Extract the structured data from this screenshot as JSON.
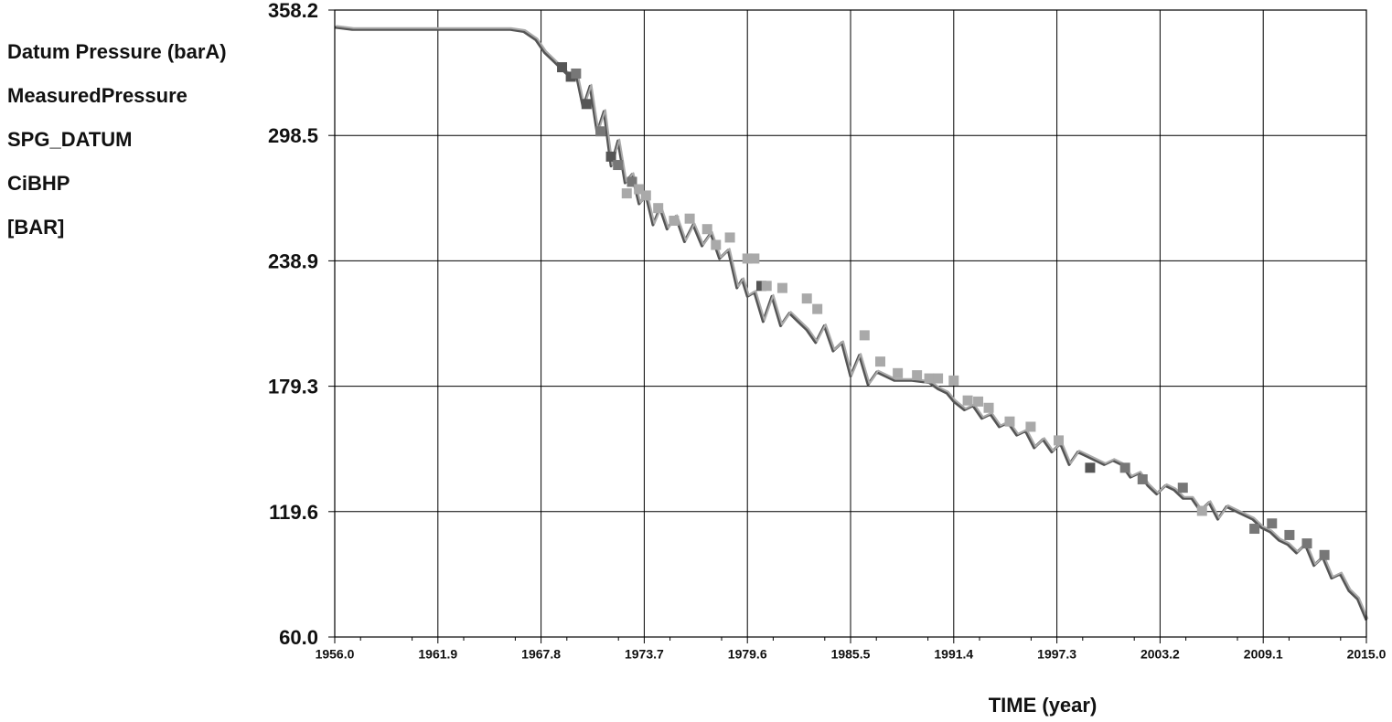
{
  "legend": {
    "lines": [
      "Datum Pressure (barA)",
      "MeasuredPressure",
      "SPG_DATUM",
      "CiBHP",
      "[BAR]"
    ]
  },
  "chart_data": {
    "type": "line",
    "xlabel": "TIME (year)",
    "ylabel": "",
    "xlim": [
      1956.0,
      2015.0
    ],
    "ylim": [
      60.0,
      358.2
    ],
    "x_ticks": [
      "1956.0",
      "1961.9",
      "1967.8",
      "1973.7",
      "1979.6",
      "1985.5",
      "1991.4",
      "1997.3",
      "2003.2",
      "2009.1",
      "2015.0"
    ],
    "y_ticks": [
      "358.2",
      "298.5",
      "238.9",
      "179.3",
      "119.6",
      "60.0"
    ],
    "grid": true,
    "colors": {
      "series_line_dark": "#555555",
      "series_line_light": "#aaaaaa",
      "measured_dark": "#555555",
      "measured_mid": "#777777",
      "measured_light": "#a9a9a9",
      "grid": "#000000"
    },
    "series": [
      {
        "x": [
          1956.0,
          1957.0,
          1960.0,
          1964.0,
          1966.0,
          1966.8,
          1967.5,
          1968.0,
          1968.5,
          1969.0,
          1969.5,
          1969.8,
          1970.2,
          1970.6,
          1971.0,
          1971.4,
          1971.8,
          1972.2,
          1972.6,
          1973.0,
          1973.4,
          1973.8,
          1974.2,
          1974.6,
          1975.0,
          1975.5,
          1976.0,
          1976.5,
          1977.0,
          1977.5,
          1978.0,
          1978.5,
          1979.0,
          1979.3,
          1979.6,
          1980.0,
          1980.5,
          1981.0,
          1981.5,
          1982.0,
          1982.5,
          1983.0,
          1983.5,
          1984.0,
          1984.5,
          1985.0,
          1985.5,
          1986.0,
          1986.5,
          1987.0,
          1987.5,
          1988.0,
          1989.0,
          1990.0,
          1990.5,
          1991.0,
          1991.4,
          1992.0,
          1992.5,
          1993.0,
          1993.5,
          1994.0,
          1994.5,
          1995.0,
          1995.5,
          1996.0,
          1996.5,
          1997.0,
          1997.5,
          1998.0,
          1998.5,
          1999.0,
          1999.5,
          2000.0,
          2000.5,
          2001.0,
          2001.5,
          2002.0,
          2002.5,
          2003.0,
          2003.5,
          2004.0,
          2004.5,
          2005.0,
          2005.5,
          2006.0,
          2006.5,
          2007.0,
          2007.5,
          2008.0,
          2008.5,
          2009.0,
          2009.5,
          2010.0,
          2010.5,
          2011.0,
          2011.5,
          2012.0,
          2012.5,
          2013.0,
          2013.5,
          2014.0,
          2014.5,
          2015.0
        ],
        "y": [
          350.0,
          349.0,
          349.0,
          349.0,
          349.0,
          348.0,
          344.0,
          338.0,
          334.0,
          330.0,
          326.0,
          328.0,
          312.0,
          322.0,
          300.0,
          310.0,
          284.0,
          296.0,
          276.0,
          280.0,
          266.0,
          270.0,
          256.0,
          264.0,
          254.0,
          260.0,
          248.0,
          256.0,
          246.0,
          252.0,
          240.0,
          244.0,
          226.0,
          230.0,
          222.0,
          224.0,
          210.0,
          222.0,
          208.0,
          214.0,
          210.0,
          206.0,
          200.0,
          208.0,
          196.0,
          200.0,
          184.0,
          194.0,
          180.0,
          186.0,
          184.0,
          182.0,
          182.0,
          181.0,
          178.0,
          176.0,
          172.0,
          168.0,
          170.0,
          164.0,
          166.0,
          160.0,
          162.0,
          156.0,
          158.0,
          150.0,
          154.0,
          148.0,
          152.0,
          142.0,
          148.0,
          146.0,
          144.0,
          142.0,
          144.0,
          142.0,
          136.0,
          138.0,
          132.0,
          128.0,
          132.0,
          130.0,
          126.0,
          126.0,
          120.0,
          124.0,
          116.0,
          122.0,
          120.0,
          118.0,
          116.0,
          112.0,
          110.0,
          106.0,
          104.0,
          100.0,
          104.0,
          94.0,
          98.0,
          88.0,
          90.0,
          82.0,
          78.0,
          68.0
        ]
      }
    ],
    "measured_points": [
      {
        "x": 1969.0,
        "y": 331.0,
        "tone": "dark"
      },
      {
        "x": 1969.5,
        "y": 326.5,
        "tone": "dark"
      },
      {
        "x": 1969.8,
        "y": 328.0,
        "tone": "mid"
      },
      {
        "x": 1970.4,
        "y": 313.5,
        "tone": "dark"
      },
      {
        "x": 1971.2,
        "y": 300.5,
        "tone": "mid"
      },
      {
        "x": 1971.8,
        "y": 288.5,
        "tone": "dark"
      },
      {
        "x": 1972.2,
        "y": 284.5,
        "tone": "mid"
      },
      {
        "x": 1972.7,
        "y": 271.0,
        "tone": "light"
      },
      {
        "x": 1973.0,
        "y": 276.5,
        "tone": "mid"
      },
      {
        "x": 1973.4,
        "y": 273.0,
        "tone": "light"
      },
      {
        "x": 1973.8,
        "y": 270.0,
        "tone": "light"
      },
      {
        "x": 1974.5,
        "y": 264.0,
        "tone": "light"
      },
      {
        "x": 1975.4,
        "y": 258.0,
        "tone": "light"
      },
      {
        "x": 1976.3,
        "y": 259.0,
        "tone": "light"
      },
      {
        "x": 1977.3,
        "y": 254.0,
        "tone": "light"
      },
      {
        "x": 1977.8,
        "y": 246.5,
        "tone": "light"
      },
      {
        "x": 1978.6,
        "y": 250.0,
        "tone": "light"
      },
      {
        "x": 1979.6,
        "y": 240.0,
        "tone": "light"
      },
      {
        "x": 1980.0,
        "y": 240.0,
        "tone": "light"
      },
      {
        "x": 1980.4,
        "y": 227.0,
        "tone": "dark"
      },
      {
        "x": 1980.7,
        "y": 227.0,
        "tone": "light"
      },
      {
        "x": 1981.6,
        "y": 226.0,
        "tone": "light"
      },
      {
        "x": 1983.0,
        "y": 221.0,
        "tone": "light"
      },
      {
        "x": 1983.6,
        "y": 216.0,
        "tone": "light"
      },
      {
        "x": 1986.3,
        "y": 203.5,
        "tone": "light"
      },
      {
        "x": 1987.2,
        "y": 191.0,
        "tone": "light"
      },
      {
        "x": 1988.2,
        "y": 185.5,
        "tone": "light"
      },
      {
        "x": 1989.3,
        "y": 184.5,
        "tone": "light"
      },
      {
        "x": 1990.0,
        "y": 183.0,
        "tone": "light"
      },
      {
        "x": 1990.5,
        "y": 183.0,
        "tone": "light"
      },
      {
        "x": 1991.4,
        "y": 182.0,
        "tone": "light"
      },
      {
        "x": 1992.2,
        "y": 172.5,
        "tone": "light"
      },
      {
        "x": 1992.8,
        "y": 172.0,
        "tone": "light"
      },
      {
        "x": 1993.4,
        "y": 169.0,
        "tone": "light"
      },
      {
        "x": 1994.6,
        "y": 162.5,
        "tone": "light"
      },
      {
        "x": 1995.8,
        "y": 160.0,
        "tone": "light"
      },
      {
        "x": 1997.4,
        "y": 153.5,
        "tone": "light"
      },
      {
        "x": 1999.2,
        "y": 140.5,
        "tone": "dark"
      },
      {
        "x": 2001.2,
        "y": 140.5,
        "tone": "mid"
      },
      {
        "x": 2002.2,
        "y": 135.0,
        "tone": "mid"
      },
      {
        "x": 2004.5,
        "y": 131.0,
        "tone": "mid"
      },
      {
        "x": 2005.6,
        "y": 120.0,
        "tone": "light"
      },
      {
        "x": 2008.6,
        "y": 111.5,
        "tone": "mid"
      },
      {
        "x": 2009.6,
        "y": 114.0,
        "tone": "mid"
      },
      {
        "x": 2010.6,
        "y": 108.5,
        "tone": "mid"
      },
      {
        "x": 2011.6,
        "y": 104.5,
        "tone": "mid"
      },
      {
        "x": 2012.6,
        "y": 99.0,
        "tone": "mid"
      }
    ]
  }
}
